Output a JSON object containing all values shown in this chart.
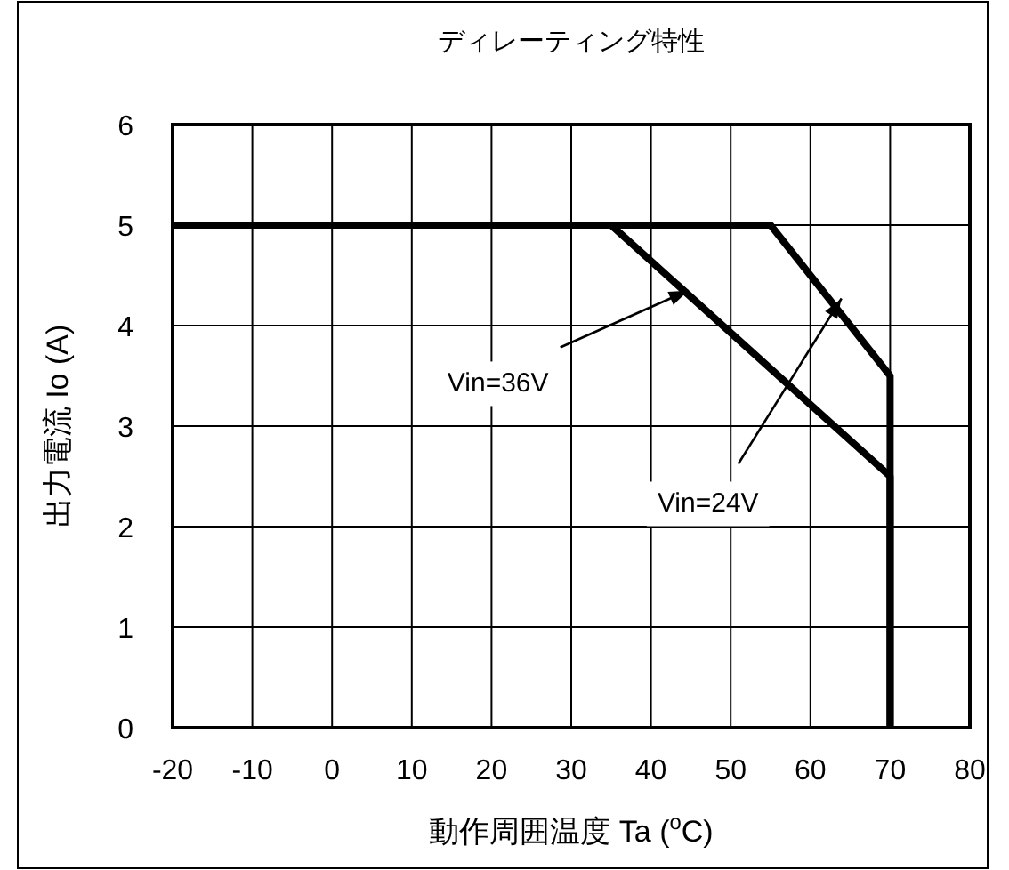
{
  "chart_data": {
    "type": "line",
    "title": "ディレーティング特性",
    "xlabel": "動作周囲温度 Ta ($^{o}$C)",
    "ylabel": "出力電流 Io (A)",
    "xlim": [
      -20,
      80
    ],
    "ylim": [
      0,
      6
    ],
    "xticks": [
      -20,
      -10,
      0,
      10,
      20,
      30,
      40,
      50,
      60,
      70,
      80
    ],
    "yticks": [
      0,
      1,
      2,
      3,
      4,
      5,
      6
    ],
    "grid": true,
    "marker": "none",
    "line_style": "solid",
    "series": [
      {
        "color": "#000000",
        "x": [
          -20,
          55,
          70,
          70
        ],
        "values": [
          5,
          5,
          3.5,
          0
        ]
      },
      {
        "color": "#000000",
        "x": [
          -20,
          35,
          70,
          70
        ],
        "values": [
          5,
          5,
          2.5,
          0
        ]
      }
    ],
    "annotations": [
      {
        "text": "Vin=36V",
        "x": 44.7,
        "y": 4.35
      },
      {
        "text": "Vin=24V",
        "x": 63.9,
        "y": 4.27
      }
    ]
  }
}
